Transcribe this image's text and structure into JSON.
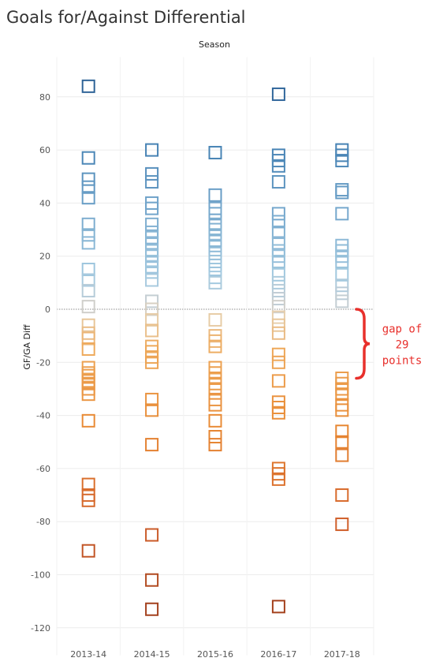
{
  "chart_data": {
    "type": "scatter",
    "title": "Goals for/Against Differential",
    "column_header": "Season",
    "ylabel": "GF/GA Diff",
    "categories": [
      "2013-14",
      "2014-15",
      "2015-16",
      "2016-17",
      "2017-18"
    ],
    "ylim": [
      -125,
      95
    ],
    "yticks": [
      80,
      60,
      40,
      20,
      0,
      -20,
      -40,
      -60,
      -80,
      -100,
      -120
    ],
    "grid": true,
    "zero_line": true,
    "marker": "hollow-square",
    "color_scale": "diverging-orange-blue",
    "series": [
      {
        "category": "2013-14",
        "values": [
          84,
          57,
          49,
          46,
          42,
          32,
          28,
          25,
          15,
          11,
          7,
          1,
          -6,
          -9,
          -11,
          -15,
          -22,
          -24,
          -25,
          -27,
          -28,
          -30,
          -32,
          -42,
          -66,
          -70,
          -72,
          -91
        ]
      },
      {
        "category": "2014-15",
        "values": [
          60,
          51,
          48,
          40,
          38,
          32,
          29,
          27,
          25,
          22,
          20,
          18,
          16,
          14,
          11,
          3,
          0,
          -4,
          -8,
          -14,
          -16,
          -18,
          -20,
          -34,
          -38,
          -51,
          -85,
          -102,
          -113
        ]
      },
      {
        "category": "2015-16",
        "values": [
          59,
          43,
          38,
          36,
          32,
          30,
          28,
          26,
          24,
          21,
          18,
          15,
          12,
          10,
          -4,
          -10,
          -12,
          -14,
          -22,
          -24,
          -26,
          -28,
          -30,
          -34,
          -36,
          -42,
          -48,
          -51
        ]
      },
      {
        "category": "2016-17",
        "values": [
          81,
          58,
          56,
          54,
          48,
          36,
          33,
          29,
          25,
          22,
          20,
          18,
          13,
          10,
          7,
          4,
          1,
          -3,
          -6,
          -9,
          -17,
          -20,
          -27,
          -35,
          -37,
          -39,
          -60,
          -62,
          -64,
          -112
        ]
      },
      {
        "category": "2017-18",
        "values": [
          60,
          58,
          56,
          45,
          44,
          36,
          24,
          22,
          20,
          18,
          13,
          9,
          6,
          3,
          -26,
          -28,
          -30,
          -32,
          -36,
          -38,
          -46,
          -50,
          -55,
          -70,
          -81
        ]
      }
    ],
    "annotation": {
      "lines": [
        "gap of",
        "29",
        "points"
      ],
      "range": [
        0,
        -26
      ],
      "color": "#e8302c"
    }
  }
}
